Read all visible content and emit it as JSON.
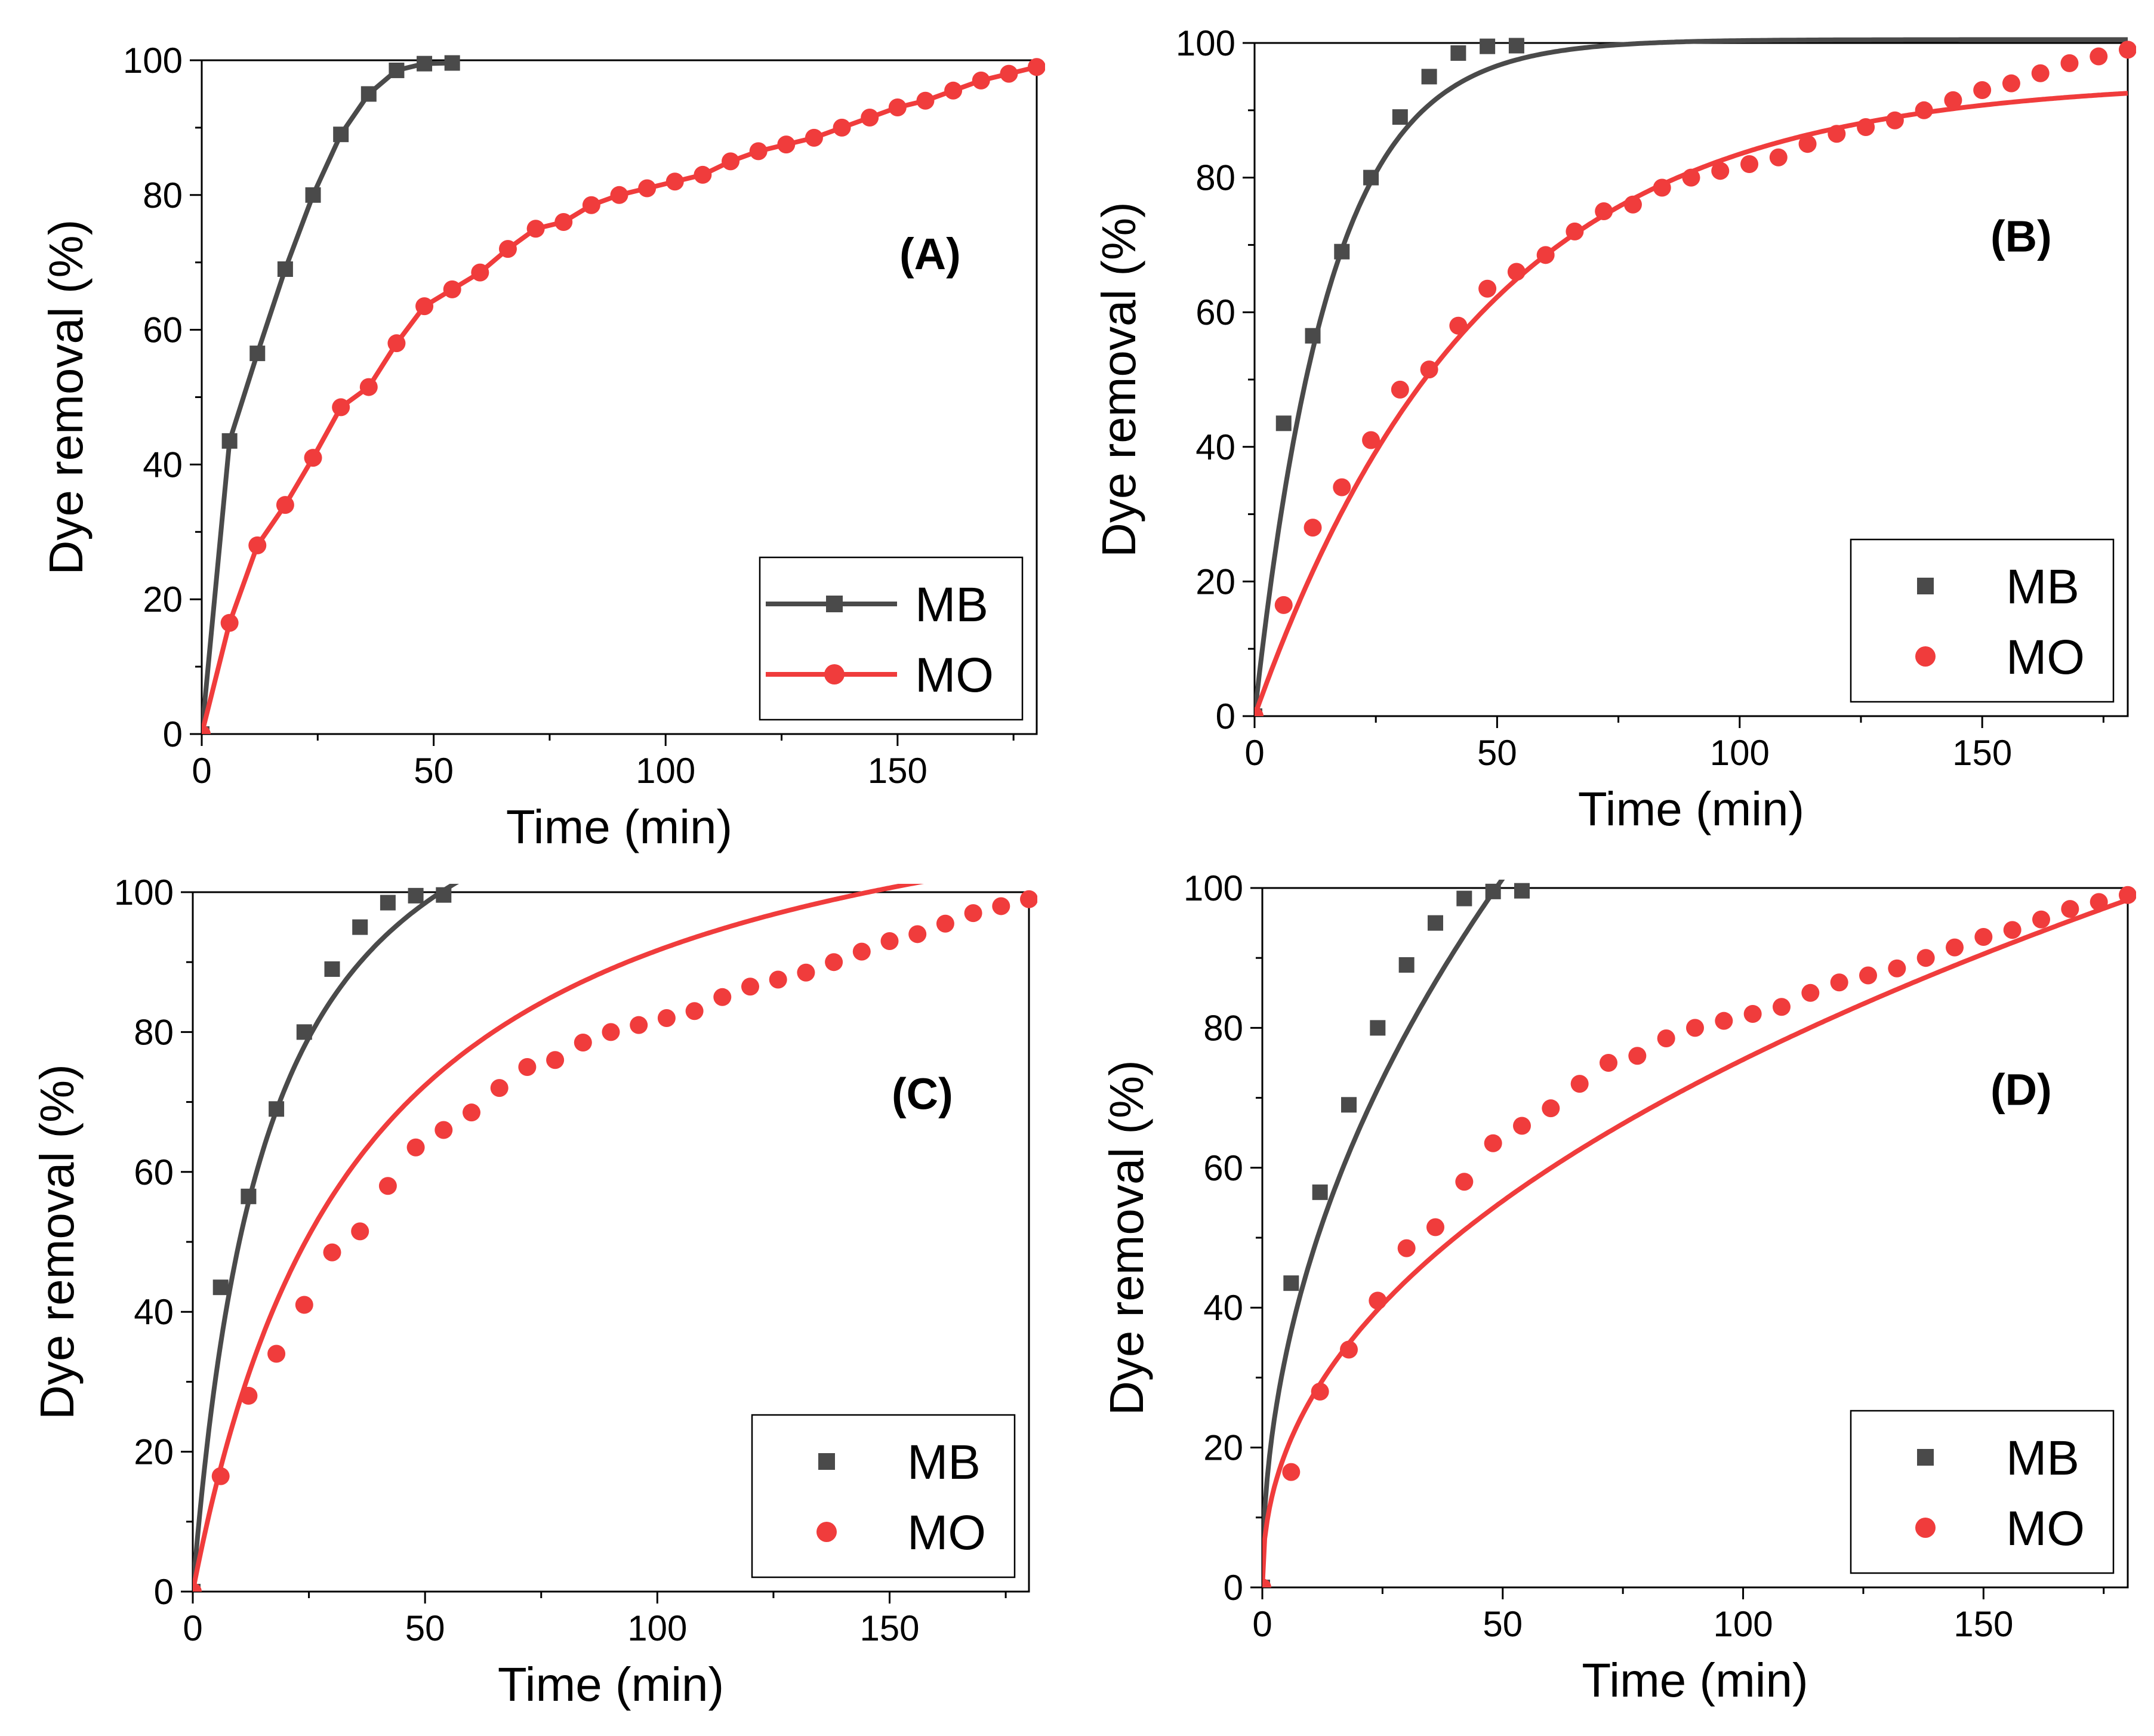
{
  "figure": {
    "colors": {
      "MB": "#4a4a4a",
      "MO": "#f03c3c",
      "axis": "#000000"
    }
  },
  "chart_data": [
    {
      "id": "A",
      "type": "line",
      "panel_label": "(A)",
      "xlabel": "Time (min)",
      "ylabel": "Dye removal (%)",
      "xlim": [
        0,
        180
      ],
      "ylim": [
        0,
        100
      ],
      "xticks": [
        0,
        50,
        100,
        150
      ],
      "yticks": [
        0,
        20,
        40,
        60,
        80,
        100
      ],
      "legend": {
        "position": "bottom-right",
        "style": "line-marker"
      },
      "series": [
        {
          "name": "MB",
          "marker": "square",
          "line": "connected",
          "x": [
            0,
            6,
            12,
            18,
            24,
            30,
            36,
            42,
            48,
            54
          ],
          "y": [
            0,
            43.5,
            56.5,
            69,
            80,
            89,
            95,
            98.5,
            99.5,
            99.6
          ]
        },
        {
          "name": "MO",
          "marker": "circle",
          "line": "connected",
          "x": [
            0,
            6,
            12,
            18,
            24,
            30,
            36,
            42,
            48,
            54,
            60,
            66,
            72,
            78,
            84,
            90,
            96,
            102,
            108,
            114,
            120,
            126,
            132,
            138,
            144,
            150,
            156,
            162,
            168,
            174,
            180
          ],
          "y": [
            0,
            16.5,
            28,
            34,
            41,
            48.5,
            51.5,
            58,
            63.5,
            66,
            68.5,
            72,
            75,
            76,
            78.5,
            80,
            81,
            82,
            83,
            85,
            86.5,
            87.5,
            88.5,
            90,
            91.5,
            93,
            94,
            95.5,
            97,
            98,
            99
          ]
        }
      ]
    },
    {
      "id": "B",
      "type": "scatter",
      "panel_label": "(B)",
      "xlabel": "Time (min)",
      "ylabel": "Dye removal (%)",
      "xlim": [
        0,
        180
      ],
      "ylim": [
        0,
        100
      ],
      "xticks": [
        0,
        50,
        100,
        150
      ],
      "yticks": [
        0,
        20,
        40,
        60,
        80,
        100
      ],
      "legend": {
        "position": "bottom-right",
        "style": "marker"
      },
      "series": [
        {
          "name": "MB",
          "marker": "square",
          "x": [
            0,
            6,
            12,
            18,
            24,
            30,
            36,
            42,
            48,
            54
          ],
          "y": [
            0,
            43.5,
            56.5,
            69,
            80,
            89,
            95,
            98.5,
            99.5,
            99.6
          ],
          "fit": {
            "model": "first-order",
            "qe": 100.5,
            "k": 0.065
          }
        },
        {
          "name": "MO",
          "marker": "circle",
          "x": [
            0,
            6,
            12,
            18,
            24,
            30,
            36,
            42,
            48,
            54,
            60,
            66,
            72,
            78,
            84,
            90,
            96,
            102,
            108,
            114,
            120,
            126,
            132,
            138,
            144,
            150,
            156,
            162,
            168,
            174,
            180
          ],
          "y": [
            0,
            16.5,
            28,
            34,
            41,
            48.5,
            51.5,
            58,
            63.5,
            66,
            68.5,
            72,
            75,
            76,
            78.5,
            80,
            81,
            82,
            83,
            85,
            86.5,
            87.5,
            88.5,
            90,
            91.5,
            93,
            94,
            95.5,
            97,
            98,
            99
          ],
          "fit": {
            "model": "first-order",
            "qe": 94.5,
            "k": 0.0215
          }
        }
      ]
    },
    {
      "id": "C",
      "type": "scatter",
      "panel_label": "(C)",
      "xlabel": "Time (min)",
      "ylabel": "Dye removal (%)",
      "xlim": [
        0,
        180
      ],
      "ylim": [
        0,
        100
      ],
      "xticks": [
        0,
        50,
        100,
        150
      ],
      "yticks": [
        0,
        20,
        40,
        60,
        80,
        100
      ],
      "legend": {
        "position": "bottom-right",
        "style": "marker"
      },
      "series": [
        {
          "name": "MB",
          "marker": "square",
          "x": [
            0,
            6,
            12,
            18,
            24,
            30,
            36,
            42,
            48,
            54
          ],
          "y": [
            0,
            43.5,
            56.5,
            69,
            80,
            89,
            95,
            98.5,
            99.5,
            99.6
          ],
          "fit": {
            "model": "second-order",
            "qe": 130,
            "k": 0.00048
          }
        },
        {
          "name": "MO",
          "marker": "circle",
          "x": [
            0,
            6,
            12,
            18,
            24,
            30,
            36,
            42,
            48,
            54,
            60,
            66,
            72,
            78,
            84,
            90,
            96,
            102,
            108,
            114,
            120,
            126,
            132,
            138,
            144,
            150,
            156,
            162,
            168,
            174,
            180
          ],
          "y": [
            0,
            16.5,
            28,
            34,
            41,
            48.5,
            51.5,
            58,
            63.5,
            66,
            68.5,
            72,
            75,
            76,
            78.5,
            80,
            81,
            82,
            83,
            85,
            86.5,
            87.5,
            88.5,
            90,
            91.5,
            93,
            94,
            95.5,
            97,
            98,
            99
          ],
          "fit": {
            "model": "second-order",
            "qe": 125,
            "k": 0.00022
          }
        }
      ]
    },
    {
      "id": "D",
      "type": "scatter",
      "panel_label": "(D)",
      "xlabel": "Time (min)",
      "ylabel": "Dye removal (%)",
      "xlim": [
        0,
        180
      ],
      "ylim": [
        0,
        100
      ],
      "xticks": [
        0,
        50,
        100,
        150
      ],
      "yticks": [
        0,
        20,
        40,
        60,
        80,
        100
      ],
      "legend": {
        "position": "bottom-right",
        "style": "marker"
      },
      "series": [
        {
          "name": "MB",
          "marker": "square",
          "x": [
            0,
            6,
            12,
            18,
            24,
            30,
            36,
            42,
            48,
            54
          ],
          "y": [
            0,
            43.5,
            56.5,
            69,
            80,
            89,
            95,
            98.5,
            99.5,
            99.6
          ],
          "fit": {
            "model": "power",
            "a": 15.5,
            "b": 0.48
          }
        },
        {
          "name": "MO",
          "marker": "circle",
          "x": [
            0,
            6,
            12,
            18,
            24,
            30,
            36,
            42,
            48,
            54,
            60,
            66,
            72,
            78,
            84,
            90,
            96,
            102,
            108,
            114,
            120,
            126,
            132,
            138,
            144,
            150,
            156,
            162,
            168,
            174,
            180
          ],
          "y": [
            0,
            16.5,
            28,
            34,
            41,
            48.5,
            51.5,
            58,
            63.5,
            66,
            68.5,
            72,
            75,
            76,
            78.5,
            80,
            81,
            82,
            83,
            85,
            86.5,
            87.5,
            88.5,
            90,
            91.5,
            93,
            94,
            95.5,
            97,
            98,
            99
          ],
          "fit": {
            "model": "power",
            "a": 9.5,
            "b": 0.45
          }
        }
      ]
    }
  ]
}
